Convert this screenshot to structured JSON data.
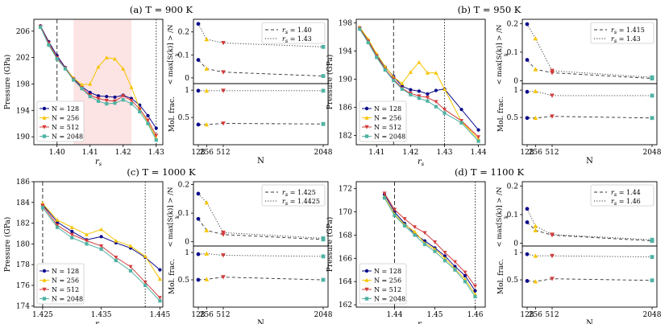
{
  "labels": {
    "pressure_axis": "Pressure (GPa)",
    "rs_axis": "r_s",
    "n_axis": "N",
    "top_ylabel": "< max[S(k)] > /N",
    "top_ylabel_sub": "k",
    "bottom_ylabel": "Mol. frac."
  },
  "legend_N": [
    "N = 128",
    "N = 256",
    "N = 512",
    "N = 2048"
  ],
  "colors": {
    "N128": "#0b0b8c",
    "N256": "#f5c400",
    "N512": "#d43c3c",
    "N2048": "#4fb3a4",
    "shade": "#fde4e4"
  },
  "chart_data": [
    {
      "id": "a",
      "type": "line",
      "title": "(a) T = 900 K",
      "pressure": {
        "xlabel": "r_s",
        "ylabel": "Pressure (GPa)",
        "xlim": [
          1.393,
          1.432
        ],
        "ylim": [
          188.8,
          207.8
        ],
        "xticks": [
          1.4,
          1.41,
          1.42,
          1.43
        ],
        "xtick_labels": [
          "1.40",
          "1.41",
          "1.42",
          "1.43"
        ],
        "yticks": [
          190,
          194,
          198,
          202,
          206
        ],
        "ytick_labels": [
          "190",
          "194",
          "198",
          "202",
          "206"
        ],
        "vlines": [
          {
            "x": 1.4,
            "style": "dashed"
          },
          {
            "x": 1.43,
            "style": "dotted"
          }
        ],
        "shade": [
          1.405,
          1.4225
        ],
        "x": [
          1.395,
          1.3975,
          1.4,
          1.4025,
          1.405,
          1.4075,
          1.41,
          1.4125,
          1.415,
          1.4175,
          1.42,
          1.4225,
          1.425,
          1.4275,
          1.43
        ],
        "series": [
          {
            "name": "N = 128",
            "values": [
              206.8,
              204.4,
              202.3,
              200.5,
              198.8,
              197.6,
              196.7,
              196.2,
              196.1,
              196.0,
              196.3,
              195.8,
              194.8,
              193.2,
              191.3
            ]
          },
          {
            "name": "N = 256",
            "values": [
              206.6,
              204.1,
              201.9,
              200.4,
              198.9,
              197.9,
              198.0,
              200.6,
              202.0,
              201.8,
              200.3,
              197.5,
              194.3,
              192.2,
              189.8
            ]
          },
          {
            "name": "N = 512",
            "values": [
              206.7,
              204.2,
              202.0,
              200.4,
              198.7,
              197.4,
              196.3,
              195.8,
              195.5,
              195.4,
              196.2,
              195.5,
              194.2,
              192.5,
              190.2
            ]
          },
          {
            "name": "N = 2048",
            "values": [
              206.6,
              203.9,
              201.8,
              200.3,
              198.6,
              197.3,
              196.1,
              195.4,
              195.0,
              195.1,
              195.6,
              195.0,
              193.8,
              192.0,
              189.5
            ]
          }
        ]
      },
      "legend_rs": [
        "r_s = 1.40",
        "r_s = 1.43"
      ],
      "structure": {
        "categories": [
          "128",
          "256",
          "512",
          "2048"
        ],
        "ylim": [
          -0.025,
          0.255
        ],
        "yticks": [
          0,
          0.1,
          0.2
        ],
        "ytick_labels": [
          "0",
          "0.1",
          "0.2"
        ],
        "dashed": [
          0.078,
          0.04,
          0.025,
          0.008
        ],
        "dotted": [
          0.235,
          0.168,
          0.152,
          0.135
        ]
      },
      "molfrac": {
        "categories": [
          "128",
          "256",
          "512",
          "2048"
        ],
        "ylim": [
          0.0,
          1.12
        ],
        "yticks": [
          0.5,
          1.0
        ],
        "ytick_labels": [
          "0.5",
          "1"
        ],
        "dashed": [
          0.37,
          0.37,
          0.39,
          0.38
        ],
        "dotted": [
          0.99,
          0.99,
          0.99,
          0.99
        ]
      }
    },
    {
      "id": "b",
      "type": "line",
      "title": "(b) T = 950 K",
      "pressure": {
        "xlabel": "r_s",
        "ylabel": "Pressure (GPa)",
        "xlim": [
          1.404,
          1.442
        ],
        "ylim": [
          180.7,
          198.5
        ],
        "xticks": [
          1.41,
          1.42,
          1.43,
          1.44
        ],
        "xtick_labels": [
          "1.41",
          "1.42",
          "1.43",
          "1.44"
        ],
        "yticks": [
          182,
          186,
          190,
          194,
          198
        ],
        "ytick_labels": [
          "182",
          "186",
          "190",
          "194",
          "198"
        ],
        "vlines": [
          {
            "x": 1.415,
            "style": "dashed"
          },
          {
            "x": 1.43,
            "style": "dotted"
          }
        ],
        "x": [
          1.405,
          1.4075,
          1.41,
          1.4125,
          1.415,
          1.4175,
          1.42,
          1.4225,
          1.425,
          1.4275,
          1.43,
          1.435,
          1.44
        ],
        "series": [
          {
            "name": "N = 128",
            "values": [
              197.3,
              195.5,
              193.4,
              191.7,
              190.4,
              189.0,
              188.5,
              188.3,
              187.9,
              188.4,
              188.6,
              185.7,
              182.8
            ]
          },
          {
            "name": "N = 256",
            "values": [
              197.4,
              195.7,
              193.6,
              191.8,
              190.3,
              189.4,
              191.0,
              192.4,
              190.9,
              190.9,
              188.6,
              184.0,
              181.5
            ]
          },
          {
            "name": "N = 512",
            "values": [
              197.2,
              195.4,
              193.3,
              191.4,
              190.0,
              188.7,
              188.0,
              187.6,
              187.4,
              186.8,
              185.7,
              184.1,
              181.8
            ]
          },
          {
            "name": "N = 2048",
            "values": [
              197.1,
              195.2,
              193.1,
              191.3,
              189.8,
              188.6,
              187.8,
              187.3,
              186.9,
              186.1,
              185.2,
              183.8,
              181.2
            ]
          }
        ]
      },
      "legend_rs": [
        "r_s = 1.415",
        "r_s = 1.43"
      ],
      "structure": {
        "categories": [
          "128",
          "256",
          "512",
          "2048"
        ],
        "ylim": [
          -0.01,
          0.215
        ],
        "yticks": [
          0,
          0.1,
          0.2
        ],
        "ytick_labels": [
          "0",
          "0.1",
          "0.2"
        ],
        "dashed": [
          0.073,
          0.04,
          0.028,
          0.008
        ],
        "dotted": [
          0.198,
          0.148,
          0.035,
          0.012
        ]
      },
      "molfrac": {
        "categories": [
          "128",
          "256",
          "512",
          "2048"
        ],
        "ylim": [
          0.0,
          1.12
        ],
        "yticks": [
          0.5,
          1.0
        ],
        "ytick_labels": [
          "0.5",
          "1"
        ],
        "dashed": [
          0.49,
          0.49,
          0.52,
          0.49
        ],
        "dotted": [
          0.97,
          0.98,
          0.9,
          0.9
        ]
      }
    },
    {
      "id": "c",
      "type": "line",
      "title": "(c) T = 1000 K",
      "pressure": {
        "xlabel": "r_s",
        "ylabel": "Pressure (GPa)",
        "xlim": [
          1.4235,
          1.4455
        ],
        "ylim": [
          173.9,
          186.0
        ],
        "xticks": [
          1.425,
          1.435,
          1.445
        ],
        "xtick_labels": [
          "1.425",
          "1.435",
          "1.445"
        ],
        "yticks": [
          174,
          176,
          178,
          180,
          182,
          184,
          186
        ],
        "ytick_labels": [
          "174",
          "176",
          "178",
          "180",
          "182",
          "184",
          "186"
        ],
        "vlines": [
          {
            "x": 1.425,
            "style": "dashed"
          },
          {
            "x": 1.4425,
            "style": "dotted"
          }
        ],
        "x": [
          1.425,
          1.4275,
          1.43,
          1.4325,
          1.435,
          1.4375,
          1.44,
          1.4425,
          1.445
        ],
        "series": [
          {
            "name": "N = 128",
            "values": [
              183.8,
              182.1,
              181.2,
              180.4,
              180.7,
              180.1,
              179.6,
              178.7,
              177.5
            ]
          },
          {
            "name": "N = 256",
            "values": [
              183.9,
              182.3,
              181.6,
              180.9,
              181.4,
              180.3,
              179.8,
              178.8,
              176.6
            ]
          },
          {
            "name": "N = 512",
            "values": [
              183.7,
              181.8,
              180.9,
              180.3,
              179.8,
              178.7,
              177.8,
              176.3,
              174.8
            ]
          },
          {
            "name": "N = 2048",
            "values": [
              183.5,
              181.6,
              180.6,
              180.0,
              179.5,
              178.4,
              177.4,
              176.0,
              174.5
            ]
          }
        ]
      },
      "legend_rs": [
        "r_s = 1.425",
        "r_s = 1.4425"
      ],
      "structure": {
        "categories": [
          "128",
          "256",
          "512",
          "2048"
        ],
        "ylim": [
          -0.015,
          0.21
        ],
        "yticks": [
          0,
          0.1,
          0.2
        ],
        "ytick_labels": [
          "0",
          "0.1",
          "0.2"
        ],
        "dashed": [
          0.08,
          0.04,
          0.025,
          0.008
        ],
        "dotted": [
          0.168,
          0.137,
          0.032,
          0.012
        ]
      },
      "molfrac": {
        "categories": [
          "128",
          "256",
          "512",
          "2048"
        ],
        "ylim": [
          0.0,
          1.12
        ],
        "yticks": [
          0.5,
          1.0
        ],
        "ytick_labels": [
          "0.5",
          "1"
        ],
        "dashed": [
          0.5,
          0.51,
          0.55,
          0.5
        ],
        "dotted": [
          0.97,
          0.98,
          0.95,
          0.93
        ]
      }
    },
    {
      "id": "d",
      "type": "line",
      "title": "(d)  T = 1100 K",
      "pressure": {
        "xlabel": "r_s",
        "ylabel": "Pressure (GPa)",
        "xlim": [
          1.4305,
          1.4625
        ],
        "ylim": [
          161.8,
          172.6
        ],
        "xticks": [
          1.44,
          1.45,
          1.46
        ],
        "xtick_labels": [
          "1.44",
          "1.45",
          "1.46"
        ],
        "yticks": [
          162,
          164,
          166,
          168,
          170,
          172
        ],
        "ytick_labels": [
          "162",
          "164",
          "166",
          "168",
          "170",
          "172"
        ],
        "vlines": [
          {
            "x": 1.44,
            "style": "dashed"
          },
          {
            "x": 1.46,
            "style": "dotted"
          }
        ],
        "x": [
          1.4375,
          1.44,
          1.4425,
          1.445,
          1.4475,
          1.45,
          1.4525,
          1.455,
          1.4575,
          1.46
        ],
        "series": [
          {
            "name": "N = 128",
            "values": [
              171.5,
              170.0,
              169.0,
              168.1,
              167.5,
              166.9,
              166.2,
              165.3,
              164.5,
              163.2
            ]
          },
          {
            "name": "N = 256",
            "values": [
              171.3,
              169.8,
              168.9,
              168.3,
              167.3,
              166.8,
              166.0,
              165.1,
              164.2,
              162.9
            ]
          },
          {
            "name": "N = 512",
            "values": [
              171.6,
              170.2,
              169.4,
              168.7,
              168.2,
              167.4,
              166.5,
              165.7,
              164.8,
              163.6
            ]
          },
          {
            "name": "N = 2048",
            "values": [
              171.2,
              169.7,
              168.8,
              168.0,
              167.2,
              166.6,
              165.8,
              165.0,
              164.0,
              162.7
            ]
          }
        ]
      },
      "legend_rs": [
        "r_s = 1.44",
        "r_s = 1.46"
      ],
      "structure": {
        "categories": [
          "128",
          "256",
          "512",
          "2048"
        ],
        "ylim": [
          -0.01,
          0.215
        ],
        "yticks": [
          0,
          0.1,
          0.2
        ],
        "ytick_labels": [
          "0",
          "0.1",
          "0.2"
        ],
        "dashed": [
          0.073,
          0.045,
          0.028,
          0.008
        ],
        "dotted": [
          0.12,
          0.06,
          0.03,
          0.012
        ]
      },
      "molfrac": {
        "categories": [
          "128",
          "256",
          "512",
          "2048"
        ],
        "ylim": [
          0.0,
          1.12
        ],
        "yticks": [
          0.5,
          1.0
        ],
        "ytick_labels": [
          "0.5",
          "1"
        ],
        "dashed": [
          0.48,
          0.47,
          0.52,
          0.49
        ],
        "dotted": [
          0.97,
          0.94,
          0.94,
          0.92
        ]
      }
    }
  ]
}
